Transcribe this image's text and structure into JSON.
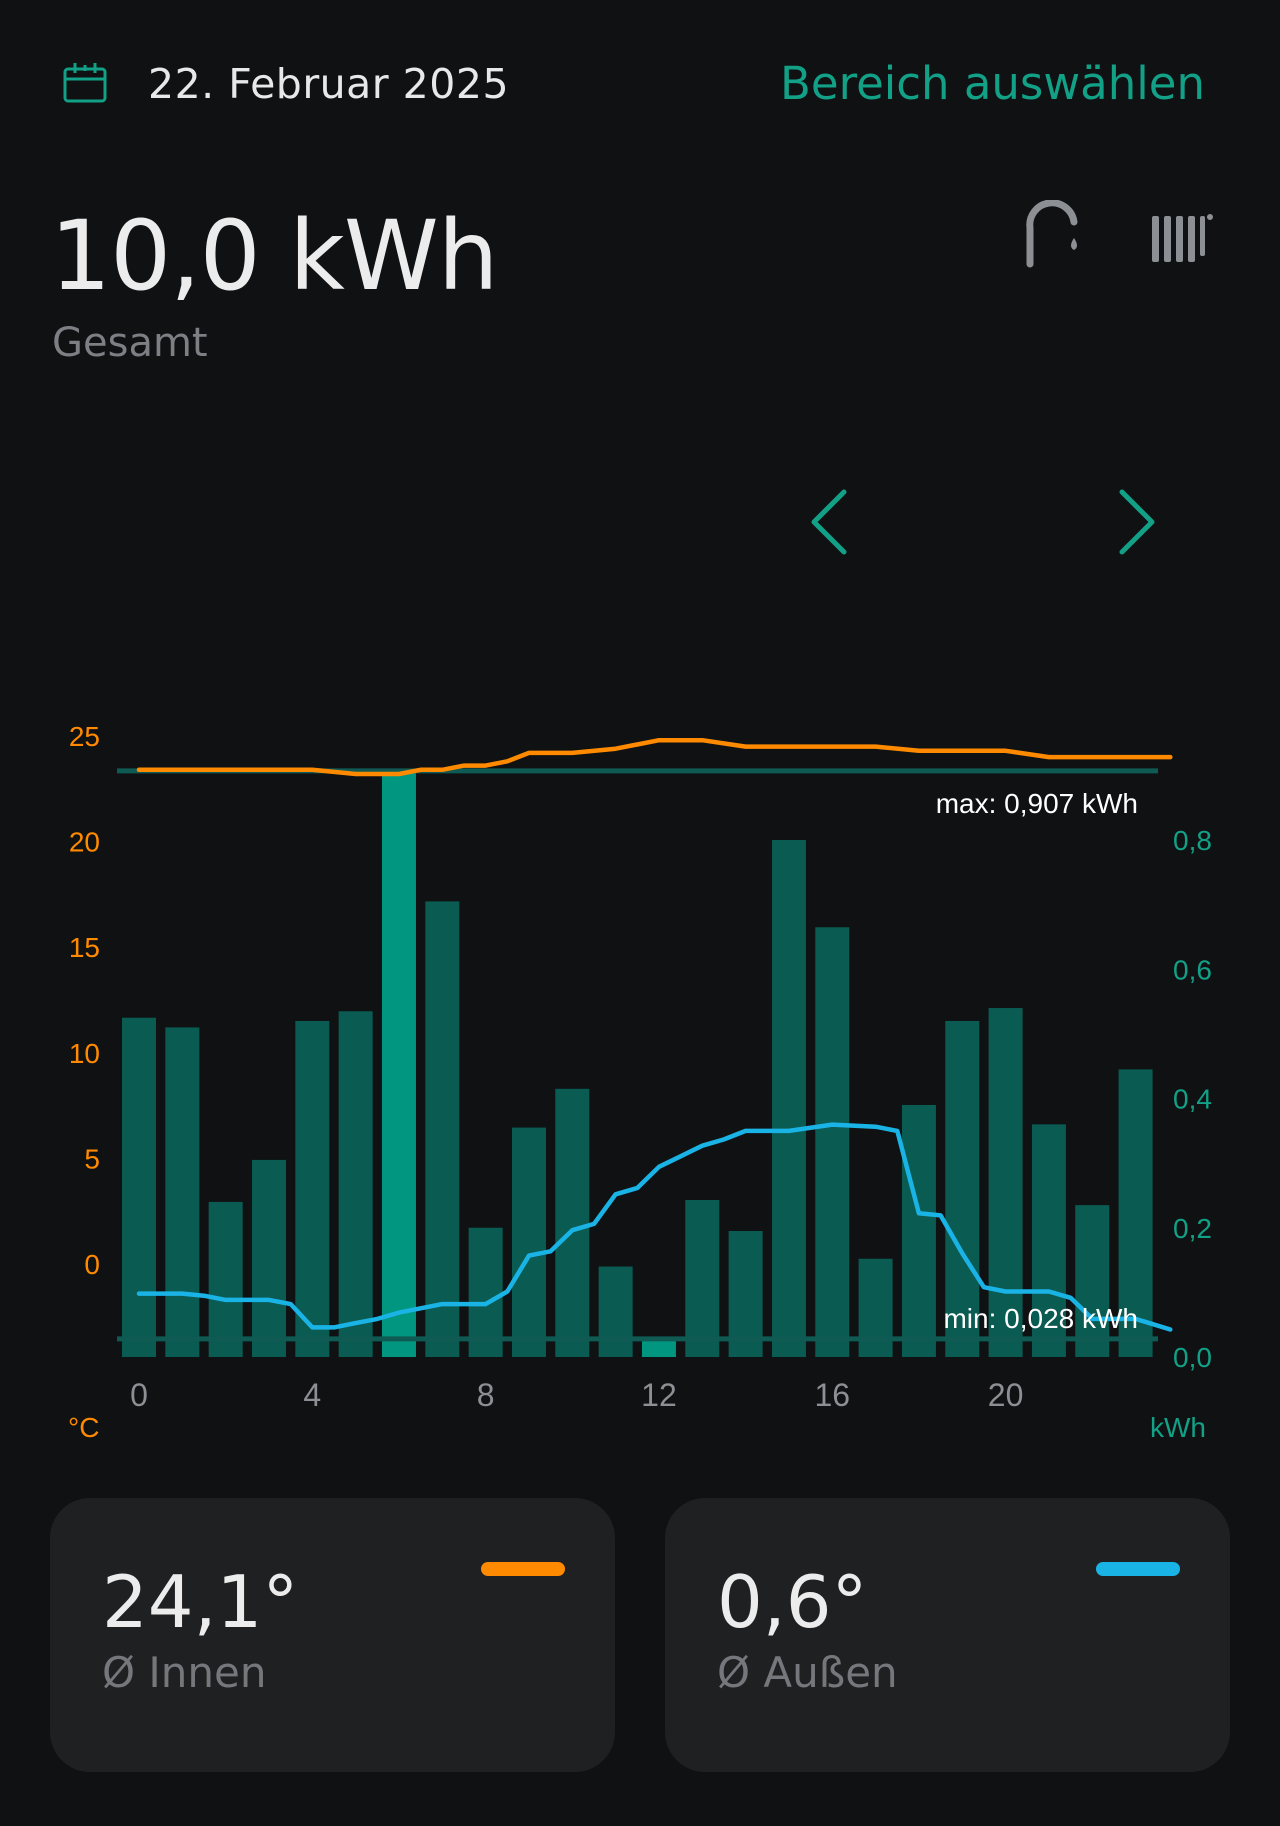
{
  "header": {
    "date": "22. Februar 2025",
    "range_link": "Bereich auswählen",
    "calendar_icon": "calendar-icon"
  },
  "summary": {
    "total_value": "10,0 kWh",
    "total_label": "Gesamt",
    "icons": [
      "water-tap-icon",
      "radiator-icon"
    ]
  },
  "navigation": {
    "prev_icon": "chevron-left-icon",
    "next_icon": "chevron-right-icon"
  },
  "chart_data": {
    "type": "bar",
    "x_ticks": [
      "0",
      "4",
      "8",
      "12",
      "16",
      "20"
    ],
    "hours": [
      0,
      1,
      2,
      3,
      4,
      5,
      6,
      7,
      8,
      9,
      10,
      11,
      12,
      13,
      14,
      15,
      16,
      17,
      18,
      19,
      20,
      21,
      22,
      23
    ],
    "energy_kwh": [
      0.525,
      0.51,
      0.24,
      0.305,
      0.52,
      0.535,
      0.907,
      0.705,
      0.2,
      0.355,
      0.415,
      0.14,
      0.028,
      0.243,
      0.195,
      0.8,
      0.665,
      0.152,
      0.39,
      0.52,
      0.54,
      0.36,
      0.235,
      0.445
    ],
    "highlighted": [
      6,
      12
    ],
    "left_axis": {
      "unit": "°C",
      "ticks": [
        "25",
        "20",
        "15",
        "10",
        "5",
        "0"
      ],
      "tick_values": [
        25,
        20,
        15,
        10,
        5,
        0
      ]
    },
    "right_axis": {
      "unit": "kWh",
      "ticks": [
        "0,8",
        "0,6",
        "0,4",
        "0,2",
        "0,0"
      ],
      "tick_values": [
        0.8,
        0.6,
        0.4,
        0.2,
        0.0
      ]
    },
    "indoor_temp": {
      "x": [
        0,
        1,
        2,
        3,
        4,
        5,
        5.5,
        6,
        6.5,
        7,
        7.5,
        8,
        8.5,
        9,
        10,
        11,
        12,
        13,
        14,
        15,
        16,
        17,
        18,
        19,
        20,
        21,
        22,
        23,
        23.8
      ],
      "y": [
        23.4,
        23.4,
        23.4,
        23.4,
        23.4,
        23.2,
        23.2,
        23.2,
        23.4,
        23.4,
        23.6,
        23.6,
        23.8,
        24.2,
        24.2,
        24.4,
        24.8,
        24.8,
        24.5,
        24.5,
        24.5,
        24.5,
        24.3,
        24.3,
        24.3,
        24.0,
        24.0,
        24.0,
        24.0
      ],
      "color": "#ff8a00"
    },
    "outdoor_temp": {
      "x": [
        0,
        1,
        1.5,
        2,
        3,
        3.5,
        4,
        4.5,
        5,
        5.5,
        6,
        7,
        8,
        8.5,
        9,
        9.5,
        10,
        10.5,
        11,
        11.5,
        12,
        12.5,
        13,
        13.5,
        14,
        15,
        16,
        17,
        17.5,
        18,
        18.5,
        19,
        19.5,
        20,
        21,
        21.5,
        22,
        23,
        23.8
      ],
      "y": [
        -1.4,
        -1.4,
        -1.5,
        -1.7,
        -1.7,
        -1.9,
        -3.0,
        -3.0,
        -2.8,
        -2.6,
        -2.3,
        -1.9,
        -1.9,
        -1.3,
        0.4,
        0.6,
        1.6,
        1.9,
        3.3,
        3.6,
        4.6,
        5.1,
        5.6,
        5.9,
        6.3,
        6.3,
        6.6,
        6.5,
        6.3,
        2.4,
        2.3,
        0.5,
        -1.1,
        -1.3,
        -1.3,
        -1.6,
        -2.6,
        -2.6,
        -3.1
      ],
      "color": "#1ab3e6"
    },
    "max_label": "max: 0,907 kWh",
    "min_label": "min: 0,028 kWh",
    "colors": {
      "bar": "#0a5b52",
      "bar_highlight": "#00967f",
      "left_axis": "#ff8a00",
      "right_axis": "#12a086",
      "ref_line": "#0f5b54"
    }
  },
  "cards": [
    {
      "value": "24,1°",
      "label": "Ø Innen",
      "color": "#ff8a00"
    },
    {
      "value": "0,6°",
      "label": "Ø Außen",
      "color": "#1ab3e6"
    }
  ]
}
